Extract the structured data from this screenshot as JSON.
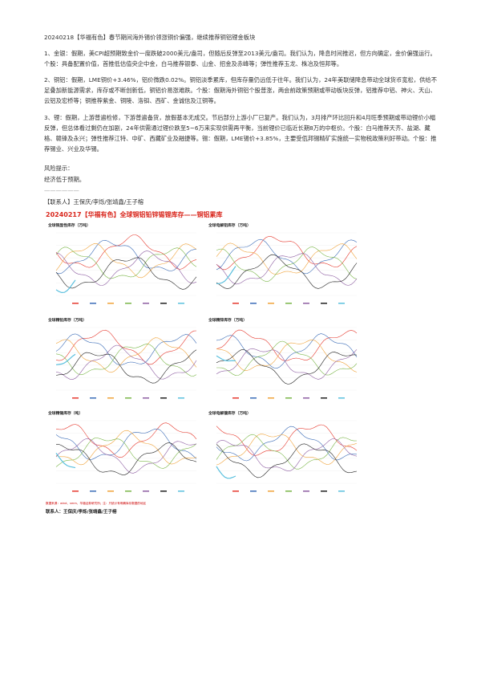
{
  "header": {
    "title": "20240218【华福有色】春节期间海外锡价领涨铜价偏强，继续推荐铜铝锂金板块"
  },
  "paragraphs": [
    "1、金银：假期，美CPI超预期致金价一度跌破2000美元/盎司，但随后反弹至2013美元/盎司。我们认为，降息时间推迟，但方向确定，金价偏强运行。个股：具备配置价值，首推低估值央企中金，白马推荐银泰、山金、招金及赤峰等；弹性推荐玉龙、株冶及恒邦等。",
    "2、铜铝：假期，LME铜价+3.46%，铝价微跌0.02%。铜铝淡季累库，但库存量仍远低于往年。我们认为，24年美联储降息带动全球货币宽松，供给不足叠加新能源需求，库存或不断创新低，铜铝价易涨难跌。个股：假期海外铜铝个股普涨，两会前政策预期或带动板块反弹，铝推荐中铝、神火、天山、云铝及宏桥等；铜推荐紫金、铜陵、洛钼、西矿、金诚信及江铜等。",
    "3、锂：假期，上游普遍检修，下游普遍备货，放假基本无成交。节后部分上游小厂已复产。我们认为，3月排产环比回升和4月旺季预期或带动锂价小幅反弹，但总体看过剩仍在加剧，24年供需通过锂价跌至5~6万来实现供需再平衡，当前锂价已临近长期8万的中枢价。个股：白马推荐天齐、盐湖、藏格、赣锋及永兴；弹性推荐江特、中矿、西藏矿业及融捷等。锡：假期，LME锡价+3.85%，主要受佤邦锡精矿实施统一实物税政策利好带动。个股：推荐锡业、兴业及华锡。"
  ],
  "risk": {
    "label": "风险提示：",
    "text": "经济低于预期。"
  },
  "divider": "——————",
  "contact": "【联系人】王保庆/李烁/张靖鑫/王子榕",
  "figure": {
    "title": "20240217【华福有色】全球铜铝铅锌锡锂库存——铜铝累库",
    "charts": [
      "全球铜显性库存（万吨）",
      "全球电解铝库存（万吨）",
      "全球精铅库存（万吨）",
      "全球精锌库存（万吨）",
      "全球精锡库存（吨）",
      "全球电解镍库存（万吨）"
    ],
    "source": "数据来源：wind、smm，华福证券研究所；注：只统计有明确库存数据的地区",
    "contact": "联系人：王保庆/李烁/张靖鑫/王子榕"
  }
}
